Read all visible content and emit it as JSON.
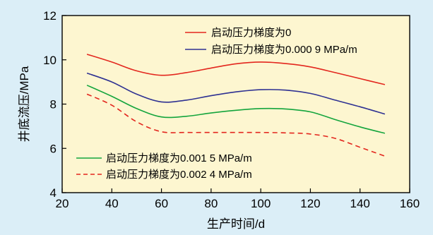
{
  "chart_data": {
    "type": "line",
    "xlabel": "生产时间/d",
    "ylabel": "井底流压/MPa",
    "xlim": [
      20,
      160
    ],
    "ylim": [
      4,
      12
    ],
    "xticks": [
      "20",
      "40",
      "60",
      "80",
      "100",
      "120",
      "140",
      "160"
    ],
    "yticks": [
      "4",
      "6",
      "8",
      "10",
      "12"
    ],
    "grid": false,
    "plot_background": "#fdf6d0",
    "page_background": "#dbeef7",
    "series": [
      {
        "name": "启动压力梯度为0",
        "color": "#e3271e",
        "dash": "solid",
        "x": [
          30,
          40,
          50,
          60,
          70,
          80,
          90,
          100,
          110,
          120,
          130,
          140,
          150
        ],
        "values": [
          10.25,
          9.9,
          9.5,
          9.3,
          9.42,
          9.63,
          9.82,
          9.9,
          9.83,
          9.68,
          9.42,
          9.15,
          8.88
        ]
      },
      {
        "name": "启动压力梯度为0.000 9 MPa/m",
        "color": "#2e3192",
        "dash": "solid",
        "x": [
          30,
          40,
          50,
          60,
          70,
          80,
          90,
          100,
          110,
          120,
          130,
          140,
          150
        ],
        "values": [
          9.4,
          9.0,
          8.45,
          8.1,
          8.18,
          8.38,
          8.55,
          8.65,
          8.63,
          8.48,
          8.18,
          7.88,
          7.55
        ]
      },
      {
        "name": "启动压力梯度为0.001 5 MPa/m",
        "color": "#14a53d",
        "dash": "solid",
        "x": [
          30,
          40,
          50,
          60,
          70,
          80,
          90,
          100,
          110,
          120,
          130,
          140,
          150
        ],
        "values": [
          8.85,
          8.35,
          7.8,
          7.42,
          7.45,
          7.6,
          7.72,
          7.8,
          7.78,
          7.65,
          7.3,
          6.97,
          6.68
        ]
      },
      {
        "name": "启动压力梯度为0.002 4 MPa/m",
        "color": "#e3271e",
        "dash": "dashed",
        "x": [
          30,
          40,
          50,
          60,
          70,
          80,
          90,
          100,
          110,
          120,
          130,
          140,
          150
        ],
        "values": [
          8.45,
          7.95,
          7.2,
          6.75,
          6.72,
          6.72,
          6.72,
          6.72,
          6.7,
          6.65,
          6.45,
          6.05,
          5.65
        ]
      }
    ]
  }
}
